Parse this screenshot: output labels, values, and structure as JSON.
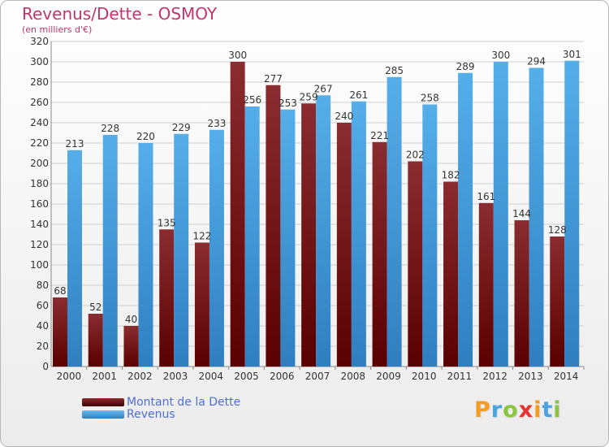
{
  "title": "Revenus/Dette - OSMOY",
  "subtitle": "(en milliers d'€)",
  "logo": {
    "text": "Proxiti",
    "colors": [
      "#f39c1e",
      "#4aa4e0",
      "#8bc43f",
      "#e8342e",
      "#f39c1e",
      "#4aa4e0",
      "#8bc43f"
    ]
  },
  "colors": {
    "dette": "#7a1f24",
    "revenus": "#4aa4e6",
    "dette_dark": "#5a0000",
    "revenus_dark": "#2f7fc0"
  },
  "chart_data": {
    "type": "bar",
    "categories": [
      "2000",
      "2001",
      "2002",
      "2003",
      "2004",
      "2005",
      "2006",
      "2007",
      "2008",
      "2009",
      "2010",
      "2011",
      "2012",
      "2013",
      "2014"
    ],
    "series": [
      {
        "name": "Montant de la Dette",
        "values": [
          68,
          52,
          40,
          135,
          122,
          300,
          277,
          259,
          240,
          221,
          202,
          182,
          161,
          144,
          128
        ]
      },
      {
        "name": "Revenus",
        "values": [
          213,
          228,
          220,
          229,
          233,
          256,
          253,
          267,
          261,
          285,
          258,
          289,
          300,
          294,
          301
        ]
      }
    ],
    "yticks": [
      0,
      20,
      40,
      60,
      80,
      100,
      120,
      140,
      160,
      180,
      200,
      220,
      240,
      260,
      280,
      300,
      320
    ],
    "ylim": [
      0,
      320
    ],
    "grid": true,
    "legend_position": "bottom-left"
  }
}
